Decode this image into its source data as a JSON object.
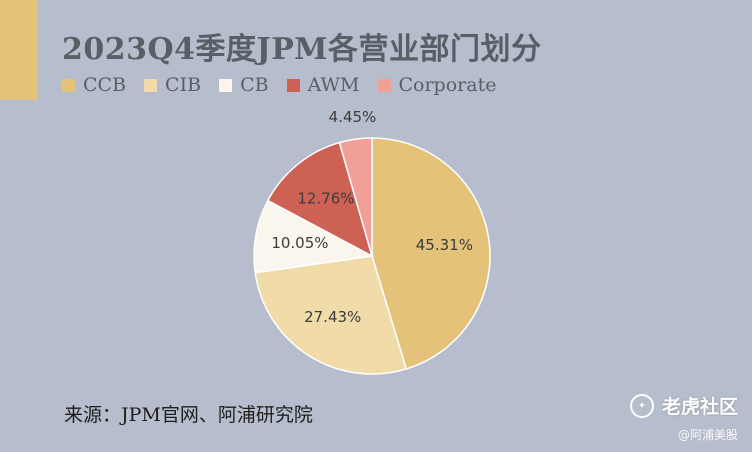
{
  "chart_data": {
    "type": "pie",
    "title": "2023Q4季度JPM各营业部门划分",
    "categories": [
      "CCB",
      "CIB",
      "CB",
      "AWM",
      "Corporate"
    ],
    "values": [
      45.31,
      27.43,
      10.05,
      12.76,
      4.45
    ],
    "value_labels": [
      "45.31%",
      "27.43%",
      "10.05%",
      "12.76%",
      "4.45%"
    ],
    "colors": [
      "#e4c27a",
      "#f1dca9",
      "#faf6ee",
      "#cd6254",
      "#f0a096"
    ],
    "legend_position": "top"
  },
  "source_text": "来源：JPM官网、阿浦研究院",
  "watermark": {
    "icon": "tiger-icon",
    "text": "老虎社区",
    "subtext": "@阿浦美股"
  }
}
